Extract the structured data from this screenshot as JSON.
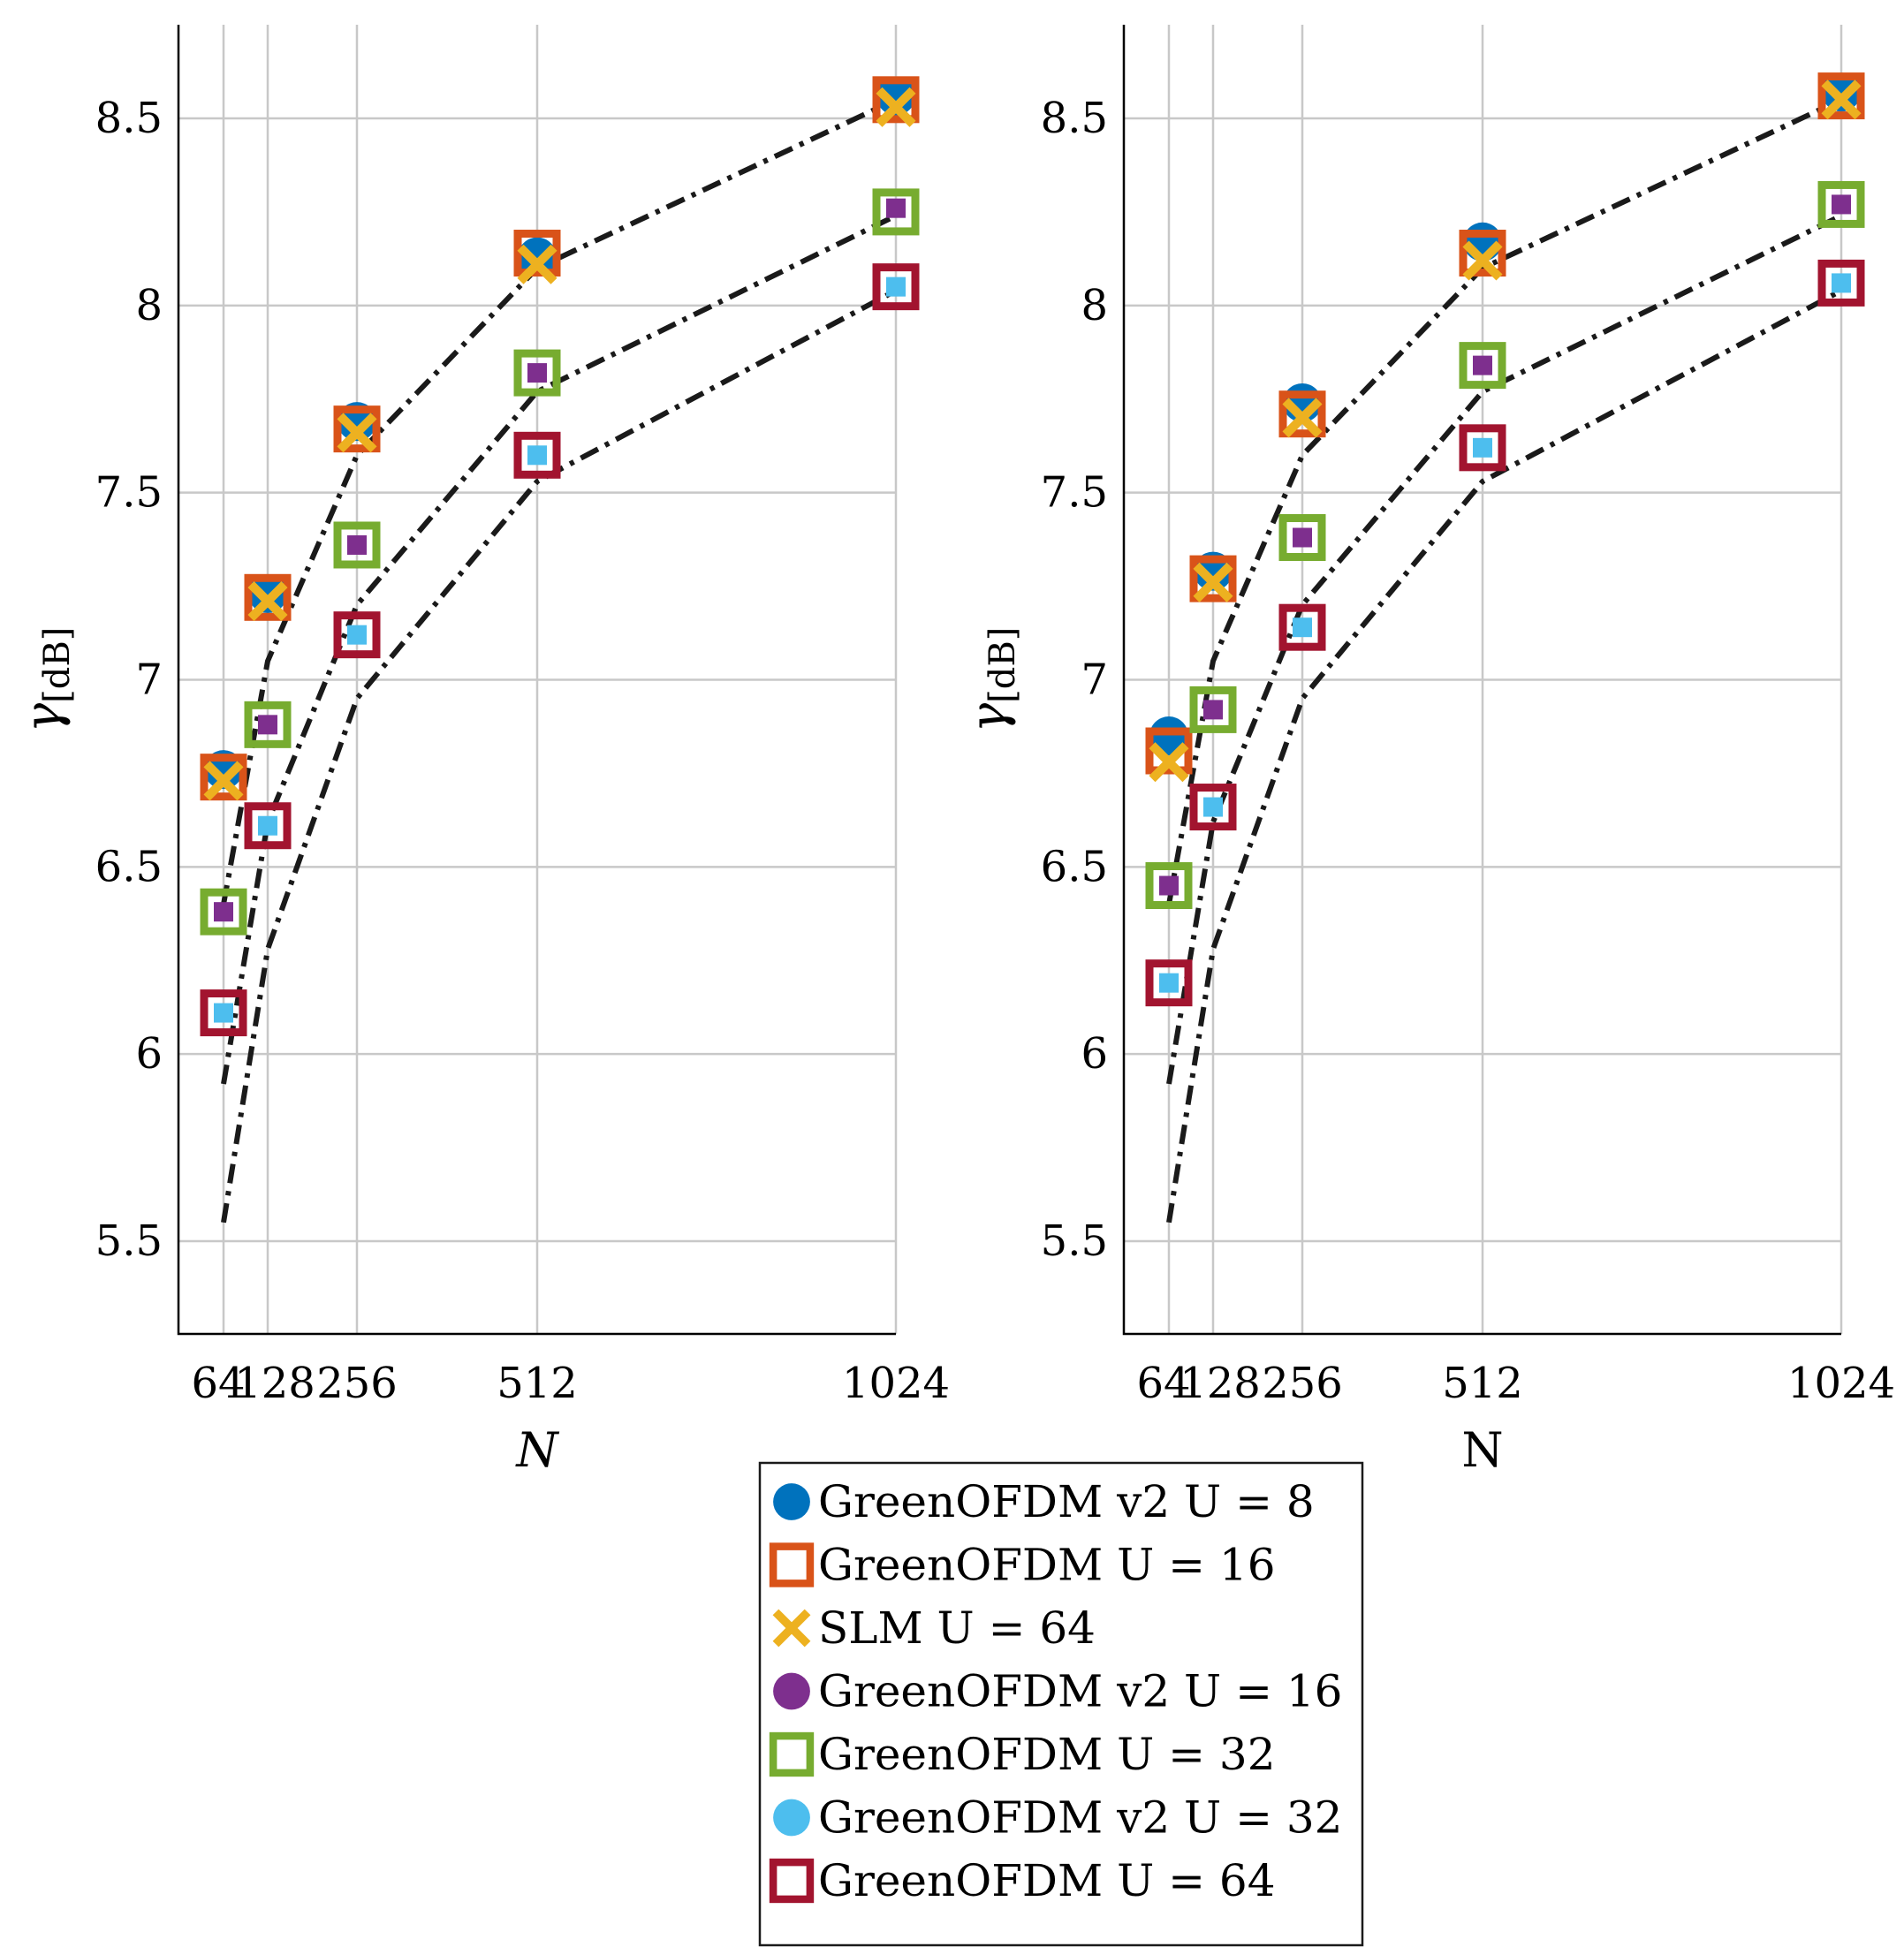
{
  "chart_data": [
    {
      "type": "scatter",
      "panel": "left",
      "xlabel": "N",
      "xlabel_italic": true,
      "ylabel": "γ",
      "ylabel_subscript": "[dB]",
      "x_ticks": [
        64,
        128,
        256,
        512,
        1024
      ],
      "x_tick_labels": [
        "64",
        "128",
        "256",
        "512",
        "1024"
      ],
      "y_ticks": [
        5.5,
        6,
        6.5,
        7,
        7.5,
        8,
        8.5
      ],
      "y_tick_labels": [
        "5.5",
        "6",
        "6.5",
        "7",
        "7.5",
        "8",
        "8.5"
      ],
      "ylim": [
        5.25,
        8.75
      ],
      "grid": true,
      "series": [
        {
          "name": "GreenOFDM v2 U = 8",
          "marker": "circle",
          "x": [
            64,
            128,
            256,
            512,
            1024
          ],
          "y": [
            6.76,
            7.23,
            7.69,
            8.13,
            8.56
          ]
        },
        {
          "name": "GreenOFDM U = 16",
          "marker": "square",
          "x": [
            64,
            128,
            256,
            512,
            1024
          ],
          "y": [
            6.74,
            7.22,
            7.67,
            8.14,
            8.55
          ]
        },
        {
          "name": "SLM U = 64",
          "marker": "x",
          "x": [
            64,
            128,
            256,
            512,
            1024
          ],
          "y": [
            6.73,
            7.21,
            7.66,
            8.11,
            8.53
          ]
        },
        {
          "name": "GreenOFDM v2 U = 16",
          "marker": "circle",
          "x": [
            64,
            128,
            256,
            512,
            1024
          ],
          "y": [
            6.38,
            6.88,
            7.36,
            7.82,
            8.26
          ]
        },
        {
          "name": "GreenOFDM U = 32",
          "marker": "square",
          "x": [
            64,
            128,
            256,
            512,
            1024
          ],
          "y": [
            6.38,
            6.88,
            7.36,
            7.82,
            8.25
          ]
        },
        {
          "name": "GreenOFDM v2 U = 32",
          "marker": "circle",
          "x": [
            64,
            128,
            256,
            512,
            1024
          ],
          "y": [
            6.11,
            6.61,
            7.12,
            7.6,
            8.05
          ]
        },
        {
          "name": "GreenOFDM U = 64",
          "marker": "square",
          "x": [
            64,
            128,
            256,
            512,
            1024
          ],
          "y": [
            6.11,
            6.61,
            7.12,
            7.6,
            8.05
          ]
        }
      ],
      "fit_curves": [
        {
          "x": [
            64,
            128,
            256,
            512,
            1024
          ],
          "y": [
            6.4,
            7.05,
            7.6,
            8.1,
            8.55
          ]
        },
        {
          "x": [
            64,
            128,
            256,
            512,
            1024
          ],
          "y": [
            5.92,
            6.62,
            7.2,
            7.77,
            8.24
          ]
        },
        {
          "x": [
            64,
            128,
            256,
            512,
            1024
          ],
          "y": [
            5.55,
            6.28,
            6.95,
            7.53,
            8.04
          ]
        }
      ]
    },
    {
      "type": "scatter",
      "panel": "right",
      "xlabel": "N",
      "xlabel_italic": false,
      "ylabel": "γ",
      "ylabel_subscript": "[dB]",
      "x_ticks": [
        64,
        128,
        256,
        512,
        1024
      ],
      "x_tick_labels": [
        "64",
        "128",
        "256",
        "512",
        "1024"
      ],
      "y_ticks": [
        5.5,
        6,
        6.5,
        7,
        7.5,
        8,
        8.5
      ],
      "y_tick_labels": [
        "5.5",
        "6",
        "6.5",
        "7",
        "7.5",
        "8",
        "8.5"
      ],
      "ylim": [
        5.25,
        8.75
      ],
      "grid": true,
      "series": [
        {
          "name": "GreenOFDM v2 U = 8",
          "marker": "circle",
          "x": [
            64,
            128,
            256,
            512,
            1024
          ],
          "y": [
            6.85,
            7.29,
            7.74,
            8.17,
            8.57
          ]
        },
        {
          "name": "GreenOFDM U = 16",
          "marker": "square",
          "x": [
            64,
            128,
            256,
            512,
            1024
          ],
          "y": [
            6.81,
            7.27,
            7.71,
            8.14,
            8.56
          ]
        },
        {
          "name": "SLM U = 64",
          "marker": "x",
          "x": [
            64,
            128,
            256,
            512,
            1024
          ],
          "y": [
            6.78,
            7.26,
            7.7,
            8.12,
            8.55
          ]
        },
        {
          "name": "GreenOFDM v2 U = 16",
          "marker": "circle",
          "x": [
            64,
            128,
            256,
            512,
            1024
          ],
          "y": [
            6.45,
            6.92,
            7.38,
            7.84,
            8.27
          ]
        },
        {
          "name": "GreenOFDM U = 32",
          "marker": "square",
          "x": [
            64,
            128,
            256,
            512,
            1024
          ],
          "y": [
            6.45,
            6.92,
            7.38,
            7.84,
            8.27
          ]
        },
        {
          "name": "GreenOFDM v2 U = 32",
          "marker": "circle",
          "x": [
            64,
            128,
            256,
            512,
            1024
          ],
          "y": [
            6.19,
            6.66,
            7.14,
            7.62,
            8.06
          ]
        },
        {
          "name": "GreenOFDM U = 64",
          "marker": "square",
          "x": [
            64,
            128,
            256,
            512,
            1024
          ],
          "y": [
            6.19,
            6.66,
            7.14,
            7.62,
            8.06
          ]
        }
      ],
      "fit_curves": [
        {
          "x": [
            64,
            128,
            256,
            512,
            1024
          ],
          "y": [
            6.4,
            7.05,
            7.6,
            8.1,
            8.55
          ]
        },
        {
          "x": [
            64,
            128,
            256,
            512,
            1024
          ],
          "y": [
            5.92,
            6.62,
            7.2,
            7.77,
            8.24
          ]
        },
        {
          "x": [
            64,
            128,
            256,
            512,
            1024
          ],
          "y": [
            5.55,
            6.28,
            6.95,
            7.53,
            8.04
          ]
        }
      ]
    }
  ],
  "legend": {
    "placement": "bottom-center",
    "items": [
      {
        "label": "GreenOFDM v2 U = 8",
        "marker": "circle",
        "color": "#0072BD"
      },
      {
        "label": "GreenOFDM U = 16",
        "marker": "square",
        "color": "#D95319"
      },
      {
        "label": "SLM U = 64",
        "marker": "x",
        "color": "#EDB120"
      },
      {
        "label": "GreenOFDM v2 U = 16",
        "marker": "circle",
        "color": "#7E2F8E"
      },
      {
        "label": "GreenOFDM U = 32",
        "marker": "square",
        "color": "#77AC30"
      },
      {
        "label": "GreenOFDM v2 U = 32",
        "marker": "circle",
        "color": "#4DBEEE"
      },
      {
        "label": "GreenOFDM U = 64",
        "marker": "square",
        "color": "#A2142F"
      }
    ]
  },
  "colors": {
    "v2_u8": "#0072BD",
    "u16": "#D95319",
    "slm": "#EDB120",
    "v2_u16": "#7E2F8E",
    "u32": "#77AC30",
    "v2_u32": "#4DBEEE",
    "u64": "#A2142F",
    "fit_line": "#1a1a1a",
    "grid": "#c8c8c8"
  }
}
